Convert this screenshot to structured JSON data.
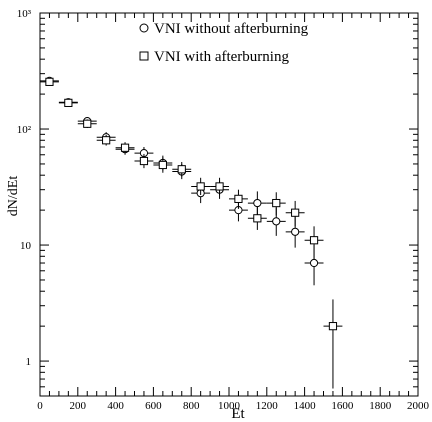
{
  "chart_data": {
    "type": "scatter",
    "xlabel": "Et",
    "ylabel": "dN/dEt",
    "xlim": [
      0,
      2000
    ],
    "ylim": [
      0.5,
      1000
    ],
    "y_scale": "log",
    "legend_position": "top-right",
    "x_ticks": [
      "0",
      "200",
      "400",
      "600",
      "800",
      "1000",
      "1200",
      "1400",
      "1600",
      "1800",
      "2000"
    ],
    "y_ticks": [
      {
        "value": 1,
        "label": "1"
      },
      {
        "value": 10,
        "label": "10"
      },
      {
        "value": 100,
        "label": "10²"
      },
      {
        "value": 1000,
        "label": "10³"
      }
    ],
    "series": [
      {
        "name": "VNI without afterburning",
        "marker": "circle",
        "points": [
          {
            "x": 50,
            "y": 260,
            "xerr": 50,
            "ylo": 245,
            "yhi": 275
          },
          {
            "x": 150,
            "y": 170,
            "xerr": 50,
            "ylo": 160,
            "yhi": 180
          },
          {
            "x": 250,
            "y": 117,
            "xerr": 50,
            "ylo": 108,
            "yhi": 127
          },
          {
            "x": 350,
            "y": 85,
            "xerr": 50,
            "ylo": 77,
            "yhi": 94
          },
          {
            "x": 450,
            "y": 67,
            "xerr": 50,
            "ylo": 60,
            "yhi": 75
          },
          {
            "x": 550,
            "y": 62,
            "xerr": 50,
            "ylo": 55,
            "yhi": 70
          },
          {
            "x": 650,
            "y": 51,
            "xerr": 50,
            "ylo": 44,
            "yhi": 59
          },
          {
            "x": 750,
            "y": 43,
            "xerr": 50,
            "ylo": 37,
            "yhi": 50
          },
          {
            "x": 850,
            "y": 28,
            "xerr": 50,
            "ylo": 23,
            "yhi": 34
          },
          {
            "x": 950,
            "y": 30,
            "xerr": 50,
            "ylo": 25,
            "yhi": 36
          },
          {
            "x": 1050,
            "y": 20,
            "xerr": 50,
            "ylo": 16,
            "yhi": 25
          },
          {
            "x": 1150,
            "y": 23,
            "xerr": 50,
            "ylo": 18,
            "yhi": 29
          },
          {
            "x": 1250,
            "y": 16,
            "xerr": 50,
            "ylo": 12,
            "yhi": 21
          },
          {
            "x": 1350,
            "y": 13,
            "xerr": 50,
            "ylo": 9.5,
            "yhi": 17.5
          },
          {
            "x": 1450,
            "y": 7,
            "xerr": 50,
            "ylo": 4.5,
            "yhi": 10
          }
        ]
      },
      {
        "name": "VNI with afterburning",
        "marker": "square",
        "points": [
          {
            "x": 50,
            "y": 255,
            "xerr": 50,
            "ylo": 240,
            "yhi": 270
          },
          {
            "x": 150,
            "y": 168,
            "xerr": 50,
            "ylo": 158,
            "yhi": 178
          },
          {
            "x": 250,
            "y": 111,
            "xerr": 50,
            "ylo": 102,
            "yhi": 121
          },
          {
            "x": 350,
            "y": 80,
            "xerr": 50,
            "ylo": 72,
            "yhi": 89
          },
          {
            "x": 450,
            "y": 69,
            "xerr": 50,
            "ylo": 62,
            "yhi": 77
          },
          {
            "x": 550,
            "y": 53,
            "xerr": 50,
            "ylo": 46,
            "yhi": 61
          },
          {
            "x": 650,
            "y": 49,
            "xerr": 50,
            "ylo": 42,
            "yhi": 57
          },
          {
            "x": 750,
            "y": 45,
            "xerr": 50,
            "ylo": 39,
            "yhi": 52
          },
          {
            "x": 850,
            "y": 32,
            "xerr": 50,
            "ylo": 27,
            "yhi": 38
          },
          {
            "x": 950,
            "y": 32,
            "xerr": 50,
            "ylo": 27,
            "yhi": 38
          },
          {
            "x": 1050,
            "y": 25,
            "xerr": 50,
            "ylo": 20.5,
            "yhi": 30
          },
          {
            "x": 1150,
            "y": 17,
            "xerr": 50,
            "ylo": 13.5,
            "yhi": 21.5
          },
          {
            "x": 1250,
            "y": 23,
            "xerr": 50,
            "ylo": 18,
            "yhi": 28.5
          },
          {
            "x": 1350,
            "y": 19,
            "xerr": 50,
            "ylo": 14.5,
            "yhi": 24
          },
          {
            "x": 1450,
            "y": 11,
            "xerr": 50,
            "ylo": 7.5,
            "yhi": 14.5
          },
          {
            "x": 1550,
            "y": 2,
            "xerr": 50,
            "ylo": 0.58,
            "yhi": 3.4
          }
        ]
      }
    ]
  }
}
